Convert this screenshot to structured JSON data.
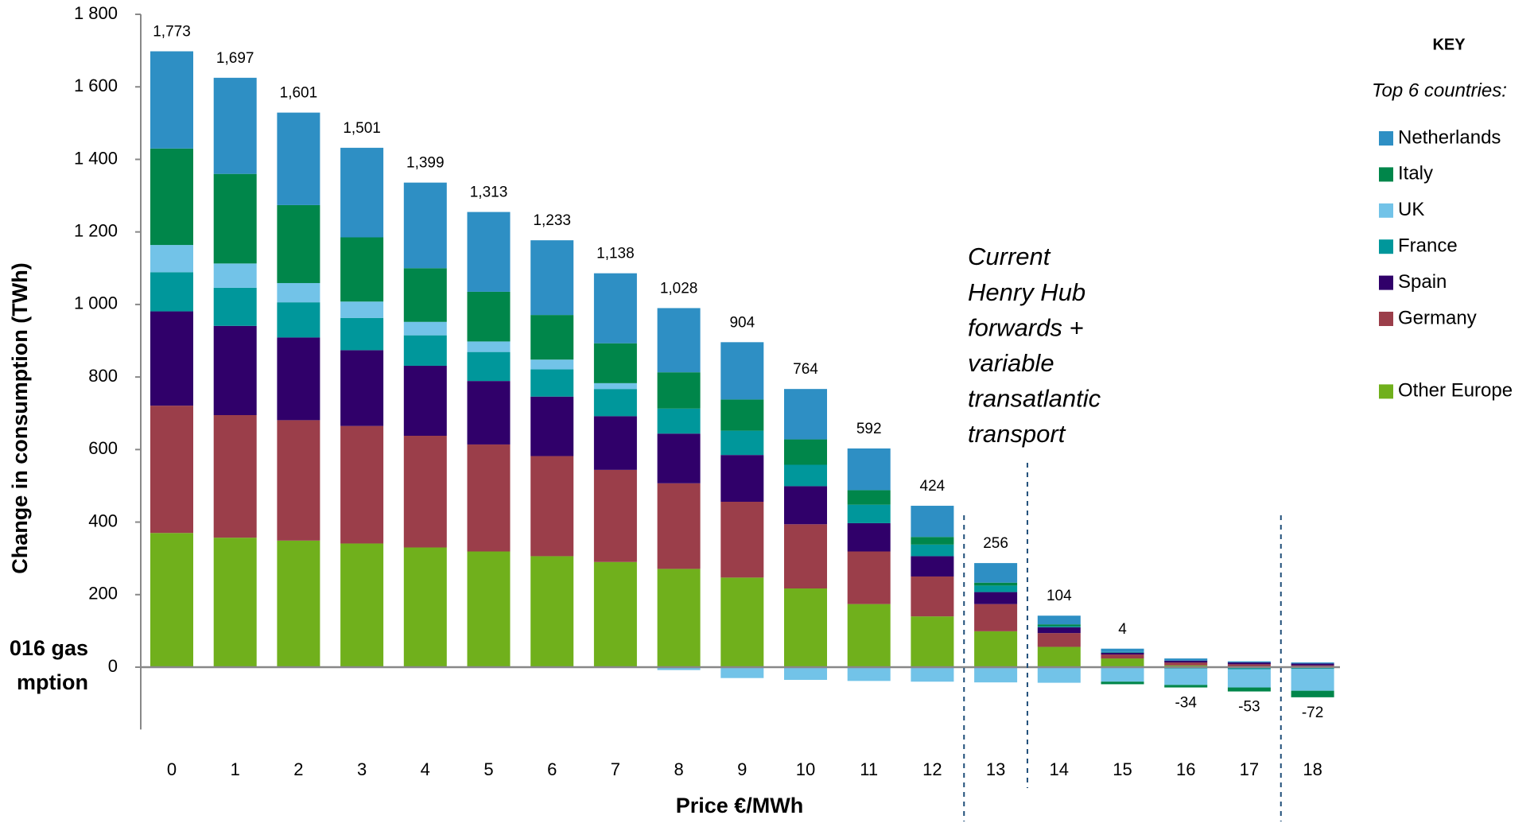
{
  "chart_data": {
    "type": "stacked_bar",
    "y_label": "Change in consumption (TWh)",
    "x_label": "Price €/MWh",
    "categories": [
      "0",
      "1",
      "2",
      "3",
      "4",
      "5",
      "6",
      "7",
      "8",
      "9",
      "10",
      "11",
      "12",
      "13",
      "14",
      "15",
      "16",
      "17",
      "18"
    ],
    "ylim": [
      -150,
      1800
    ],
    "yticks": [
      0,
      200,
      400,
      600,
      800,
      {
        "value": 1000,
        "label": "1 000"
      },
      {
        "value": 1200,
        "label": "1 200"
      },
      {
        "value": 1400,
        "label": "1 400"
      },
      {
        "value": 1600,
        "label": "1 600"
      },
      {
        "value": 1800,
        "label": "1 800"
      }
    ],
    "series": [
      {
        "name": "Other Europe",
        "color": "#70b01c",
        "values": [
          370,
          357,
          349,
          341,
          330,
          319,
          306,
          290,
          271,
          247,
          217,
          174,
          140,
          99,
          56,
          24,
          5,
          2,
          1
        ]
      },
      {
        "name": "Germany",
        "color": "#9b3e4a",
        "values": [
          351,
          338,
          332,
          324,
          308,
          295,
          276,
          254,
          236,
          209,
          177,
          145,
          110,
          75,
          38,
          11,
          8,
          6,
          4
        ]
      },
      {
        "name": "Spain",
        "color": "#30006a",
        "values": [
          260,
          246,
          228,
          209,
          193,
          175,
          164,
          148,
          137,
          129,
          105,
          78,
          56,
          33,
          16,
          5,
          5,
          5,
          5
        ]
      },
      {
        "name": "France",
        "color": "#00979b",
        "values": [
          108,
          105,
          97,
          89,
          84,
          80,
          75,
          75,
          69,
          67,
          59,
          51,
          32,
          18,
          3,
          2,
          -4,
          -6,
          -5
        ]
      },
      {
        "name": "UK",
        "color": "#72c3e8",
        "values": [
          75,
          67,
          53,
          45,
          37,
          29,
          27,
          16,
          -8,
          -30,
          -35,
          -38,
          -40,
          -42,
          -43,
          -40,
          -45,
          -50,
          -60
        ]
      },
      {
        "name": "Italy",
        "color": "#00864a",
        "values": [
          266,
          247,
          215,
          177,
          148,
          137,
          123,
          110,
          100,
          86,
          70,
          40,
          21,
          8,
          5,
          -7,
          -7,
          -11,
          -18
        ]
      },
      {
        "name": "Netherlands",
        "color": "#2e8fc4",
        "values": [
          268,
          265,
          255,
          247,
          236,
          220,
          206,
          193,
          177,
          158,
          139,
          115,
          86,
          54,
          24,
          9,
          6,
          3,
          3
        ]
      }
    ],
    "data_labels": {
      "values": [
        1773,
        1697,
        1601,
        1501,
        1399,
        1313,
        1233,
        1138,
        1028,
        904,
        764,
        592,
        424,
        256,
        104,
        4,
        -34,
        -53,
        -72
      ],
      "value_labels": [
        "1,773",
        "1,697",
        "1,601",
        "1,501",
        "1,399",
        "1,313",
        "1,233",
        "1,138",
        "1,028",
        "904",
        "764",
        "592",
        "424",
        "256",
        "104",
        "4",
        "-34",
        "-53",
        "-72"
      ]
    },
    "annotation": [
      "Current",
      "Henry Hub",
      "forwards +",
      "variable",
      "transatlantic",
      "transport"
    ],
    "left_note": [
      "016 gas",
      "mption"
    ],
    "legend_title": "KEY",
    "legend_subtitle": "Top 6 countries:",
    "grid": false
  }
}
